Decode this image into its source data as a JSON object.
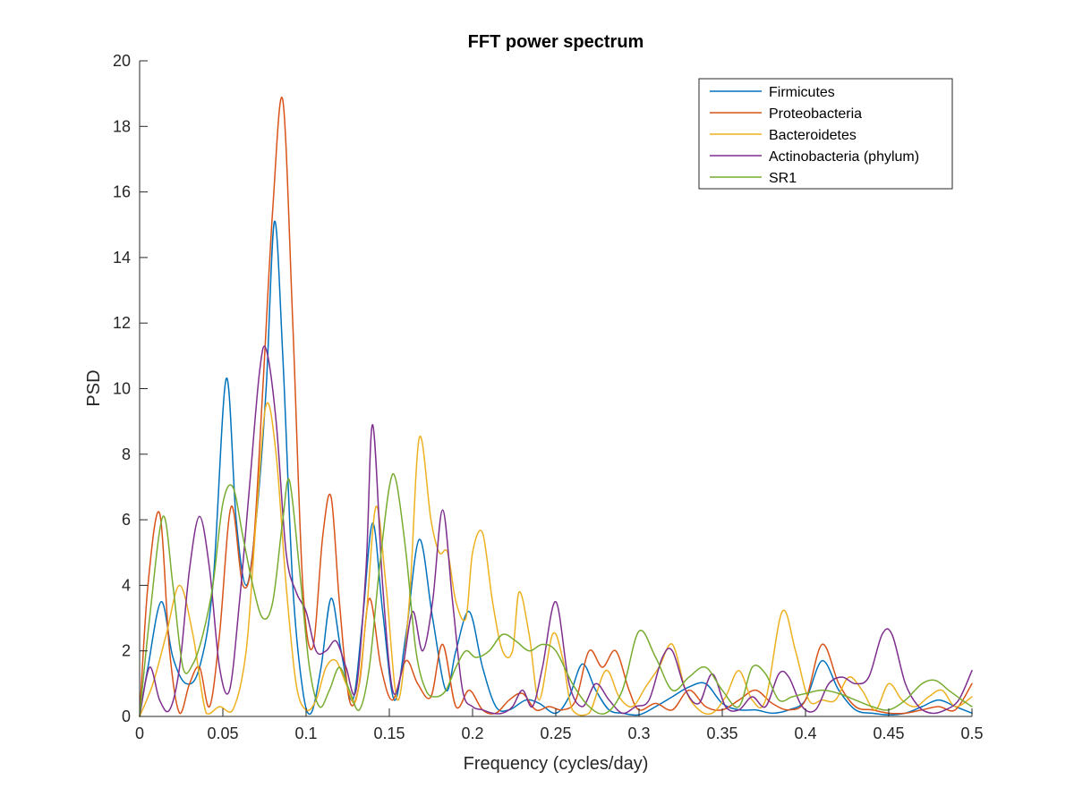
{
  "chart_data": {
    "type": "line",
    "title": "FFT power spectrum",
    "xlabel": "Frequency (cycles/day)",
    "ylabel": "PSD",
    "xlim": [
      0,
      0.5
    ],
    "ylim": [
      0,
      20
    ],
    "xticks": [
      0,
      0.05,
      0.1,
      0.15,
      0.2,
      0.25,
      0.3,
      0.35,
      0.4,
      0.45,
      0.5
    ],
    "xtick_labels": [
      "0",
      "0.05",
      "0.1",
      "0.15",
      "0.2",
      "0.25",
      "0.3",
      "0.35",
      "0.4",
      "0.45",
      "0.5"
    ],
    "yticks": [
      0,
      2,
      4,
      6,
      8,
      10,
      12,
      14,
      16,
      18,
      20
    ],
    "ytick_labels": [
      "0",
      "2",
      "4",
      "6",
      "8",
      "10",
      "12",
      "14",
      "16",
      "18",
      "20"
    ],
    "grid": false,
    "legend_position": "top-right",
    "series": [
      {
        "name": "Firmicutes",
        "color": "#0072BD",
        "x": [
          0,
          0.005,
          0.013,
          0.02,
          0.028,
          0.036,
          0.044,
          0.052,
          0.058,
          0.064,
          0.07,
          0.076,
          0.081,
          0.086,
          0.092,
          0.098,
          0.103,
          0.109,
          0.115,
          0.121,
          0.128,
          0.134,
          0.14,
          0.146,
          0.153,
          0.16,
          0.168,
          0.176,
          0.184,
          0.19,
          0.198,
          0.206,
          0.214,
          0.222,
          0.232,
          0.24,
          0.25,
          0.258,
          0.266,
          0.274,
          0.282,
          0.29,
          0.3,
          0.31,
          0.32,
          0.33,
          0.34,
          0.35,
          0.36,
          0.37,
          0.38,
          0.39,
          0.4,
          0.41,
          0.42,
          0.43,
          0.44,
          0.45,
          0.46,
          0.47,
          0.48,
          0.49,
          0.5
        ],
        "y": [
          0,
          1.5,
          3.5,
          1.8,
          1.0,
          1.5,
          4.0,
          10.3,
          6.0,
          4.0,
          6.0,
          10.0,
          15.1,
          11.0,
          4.0,
          0.8,
          0.1,
          1.5,
          3.6,
          2.0,
          0.5,
          3.0,
          5.9,
          3.2,
          0.5,
          2.5,
          5.4,
          3.0,
          0.8,
          2.0,
          3.2,
          1.5,
          0.3,
          0.2,
          0.5,
          0.4,
          0.1,
          0.6,
          1.6,
          0.8,
          0.2,
          0.1,
          0.05,
          0.3,
          0.6,
          0.9,
          1.0,
          0.4,
          0.2,
          0.2,
          0.1,
          0.2,
          0.5,
          1.7,
          0.8,
          0.2,
          0.1,
          0.05,
          0.1,
          0.3,
          0.5,
          0.3,
          0.1
        ]
      },
      {
        "name": "Proteobacteria",
        "color": "#D95319",
        "x": [
          0,
          0.005,
          0.012,
          0.018,
          0.024,
          0.03,
          0.036,
          0.042,
          0.048,
          0.055,
          0.062,
          0.068,
          0.074,
          0.08,
          0.086,
          0.092,
          0.098,
          0.104,
          0.11,
          0.115,
          0.12,
          0.126,
          0.132,
          0.138,
          0.145,
          0.152,
          0.16,
          0.167,
          0.175,
          0.182,
          0.19,
          0.198,
          0.206,
          0.214,
          0.222,
          0.23,
          0.238,
          0.246,
          0.254,
          0.262,
          0.27,
          0.278,
          0.286,
          0.294,
          0.3,
          0.31,
          0.32,
          0.33,
          0.34,
          0.35,
          0.36,
          0.37,
          0.38,
          0.39,
          0.4,
          0.41,
          0.42,
          0.43,
          0.44,
          0.45,
          0.46,
          0.47,
          0.48,
          0.49,
          0.5
        ],
        "y": [
          0,
          4.0,
          6.2,
          2.0,
          0.1,
          1.0,
          1.5,
          0.3,
          2.5,
          6.4,
          4.0,
          5.0,
          10.0,
          15.5,
          18.8,
          12.0,
          4.0,
          2.1,
          5.5,
          6.7,
          3.5,
          0.5,
          1.0,
          3.6,
          1.5,
          0.5,
          1.7,
          1.0,
          0.6,
          2.2,
          0.3,
          0.8,
          0.2,
          0.1,
          0.5,
          0.7,
          0.2,
          0.3,
          0.2,
          0.5,
          2.0,
          1.5,
          2.0,
          0.8,
          0.2,
          0.4,
          0.2,
          0.8,
          0.3,
          0.2,
          0.5,
          0.8,
          0.4,
          0.2,
          0.5,
          2.2,
          1.0,
          0.3,
          0.2,
          0.1,
          0.1,
          0.2,
          0.3,
          0.2,
          1.0
        ]
      },
      {
        "name": "Bacteroidetes",
        "color": "#EDB120",
        "x": [
          0,
          0.008,
          0.016,
          0.024,
          0.032,
          0.04,
          0.048,
          0.056,
          0.064,
          0.07,
          0.076,
          0.082,
          0.088,
          0.094,
          0.1,
          0.106,
          0.112,
          0.118,
          0.124,
          0.13,
          0.136,
          0.142,
          0.148,
          0.155,
          0.162,
          0.168,
          0.175,
          0.18,
          0.185,
          0.19,
          0.196,
          0.2,
          0.206,
          0.212,
          0.218,
          0.224,
          0.228,
          0.234,
          0.24,
          0.248,
          0.254,
          0.26,
          0.27,
          0.28,
          0.288,
          0.296,
          0.304,
          0.312,
          0.32,
          0.328,
          0.336,
          0.344,
          0.352,
          0.36,
          0.368,
          0.376,
          0.386,
          0.394,
          0.402,
          0.41,
          0.418,
          0.426,
          0.434,
          0.442,
          0.45,
          0.458,
          0.466,
          0.474,
          0.482,
          0.49,
          0.5
        ],
        "y": [
          0,
          1.0,
          2.5,
          4.0,
          2.5,
          0.1,
          0.3,
          0.2,
          2.0,
          6.0,
          9.5,
          8.0,
          4.0,
          1.0,
          0.2,
          0.5,
          1.5,
          1.7,
          1.0,
          0.5,
          3.0,
          6.4,
          4.0,
          0.5,
          3.5,
          8.5,
          6.0,
          5.0,
          5.0,
          3.5,
          3.0,
          5.0,
          5.6,
          3.5,
          2.0,
          2.0,
          3.8,
          2.5,
          0.5,
          2.5,
          1.8,
          0.2,
          0.1,
          1.4,
          0.6,
          0.3,
          0.9,
          1.5,
          2.2,
          0.8,
          0.2,
          0.1,
          0.6,
          1.4,
          0.5,
          0.5,
          3.2,
          2.0,
          0.5,
          0.5,
          0.5,
          1.2,
          0.8,
          0.2,
          1.0,
          0.5,
          0.3,
          0.6,
          0.8,
          0.3,
          0.6
        ]
      },
      {
        "name": "Actinobacteria (phylum)",
        "color": "#7E2F8E",
        "x": [
          0,
          0.006,
          0.012,
          0.018,
          0.024,
          0.03,
          0.036,
          0.042,
          0.048,
          0.054,
          0.06,
          0.066,
          0.072,
          0.076,
          0.082,
          0.088,
          0.094,
          0.1,
          0.106,
          0.112,
          0.118,
          0.124,
          0.13,
          0.136,
          0.14,
          0.146,
          0.152,
          0.158,
          0.164,
          0.17,
          0.176,
          0.182,
          0.188,
          0.194,
          0.2,
          0.206,
          0.212,
          0.218,
          0.224,
          0.23,
          0.236,
          0.242,
          0.25,
          0.258,
          0.266,
          0.274,
          0.282,
          0.29,
          0.298,
          0.306,
          0.314,
          0.32,
          0.328,
          0.336,
          0.344,
          0.352,
          0.36,
          0.368,
          0.376,
          0.384,
          0.39,
          0.398,
          0.406,
          0.414,
          0.422,
          0.43,
          0.438,
          0.446,
          0.452,
          0.46,
          0.468,
          0.476,
          0.484,
          0.492,
          0.5
        ],
        "y": [
          0,
          1.5,
          0.5,
          0.2,
          1.5,
          4.5,
          6.1,
          4.5,
          1.5,
          0.8,
          3.5,
          7.0,
          10.5,
          11.2,
          9.0,
          5.0,
          3.8,
          3.2,
          2.0,
          2.0,
          2.3,
          1.5,
          0.8,
          4.5,
          8.9,
          4.0,
          0.8,
          1.5,
          3.2,
          2.0,
          3.5,
          6.3,
          3.5,
          0.8,
          0.3,
          0.2,
          0.1,
          0.1,
          0.3,
          0.8,
          0.3,
          1.5,
          3.5,
          1.0,
          0.3,
          1.0,
          0.5,
          0.1,
          0.3,
          0.5,
          1.8,
          2.0,
          0.8,
          0.4,
          1.3,
          0.3,
          0.2,
          0.6,
          0.3,
          1.3,
          1.2,
          0.3,
          0.2,
          1.0,
          1.2,
          1.0,
          1.2,
          2.5,
          2.5,
          1.0,
          0.3,
          0.1,
          0.2,
          0.5,
          1.4
        ]
      },
      {
        "name": "SR1",
        "color": "#77AC30",
        "x": [
          0,
          0.006,
          0.014,
          0.02,
          0.026,
          0.032,
          0.038,
          0.044,
          0.05,
          0.056,
          0.062,
          0.068,
          0.074,
          0.08,
          0.086,
          0.09,
          0.096,
          0.102,
          0.108,
          0.114,
          0.12,
          0.126,
          0.132,
          0.138,
          0.144,
          0.15,
          0.154,
          0.16,
          0.166,
          0.172,
          0.178,
          0.184,
          0.19,
          0.196,
          0.202,
          0.21,
          0.218,
          0.226,
          0.234,
          0.242,
          0.25,
          0.26,
          0.27,
          0.28,
          0.29,
          0.3,
          0.31,
          0.32,
          0.33,
          0.34,
          0.35,
          0.36,
          0.368,
          0.376,
          0.384,
          0.392,
          0.4,
          0.41,
          0.42,
          0.43,
          0.44,
          0.45,
          0.46,
          0.47,
          0.478,
          0.486,
          0.494,
          0.5
        ],
        "y": [
          0,
          3.0,
          6.1,
          4.0,
          1.5,
          1.6,
          2.5,
          4.0,
          6.5,
          7.0,
          5.5,
          4.0,
          3.0,
          3.5,
          6.0,
          7.2,
          4.5,
          1.5,
          0.3,
          0.8,
          1.5,
          0.8,
          0.2,
          1.5,
          4.5,
          7.0,
          7.2,
          5.0,
          2.0,
          0.8,
          0.6,
          0.8,
          1.5,
          2.0,
          1.8,
          2.0,
          2.5,
          2.3,
          2.0,
          2.2,
          2.0,
          1.0,
          0.3,
          0.1,
          0.8,
          2.6,
          1.8,
          0.8,
          1.2,
          1.5,
          0.8,
          0.3,
          1.5,
          1.3,
          0.5,
          0.6,
          0.7,
          0.8,
          0.7,
          0.5,
          0.3,
          0.2,
          0.5,
          1.0,
          1.1,
          0.8,
          0.5,
          0.3
        ]
      }
    ]
  }
}
